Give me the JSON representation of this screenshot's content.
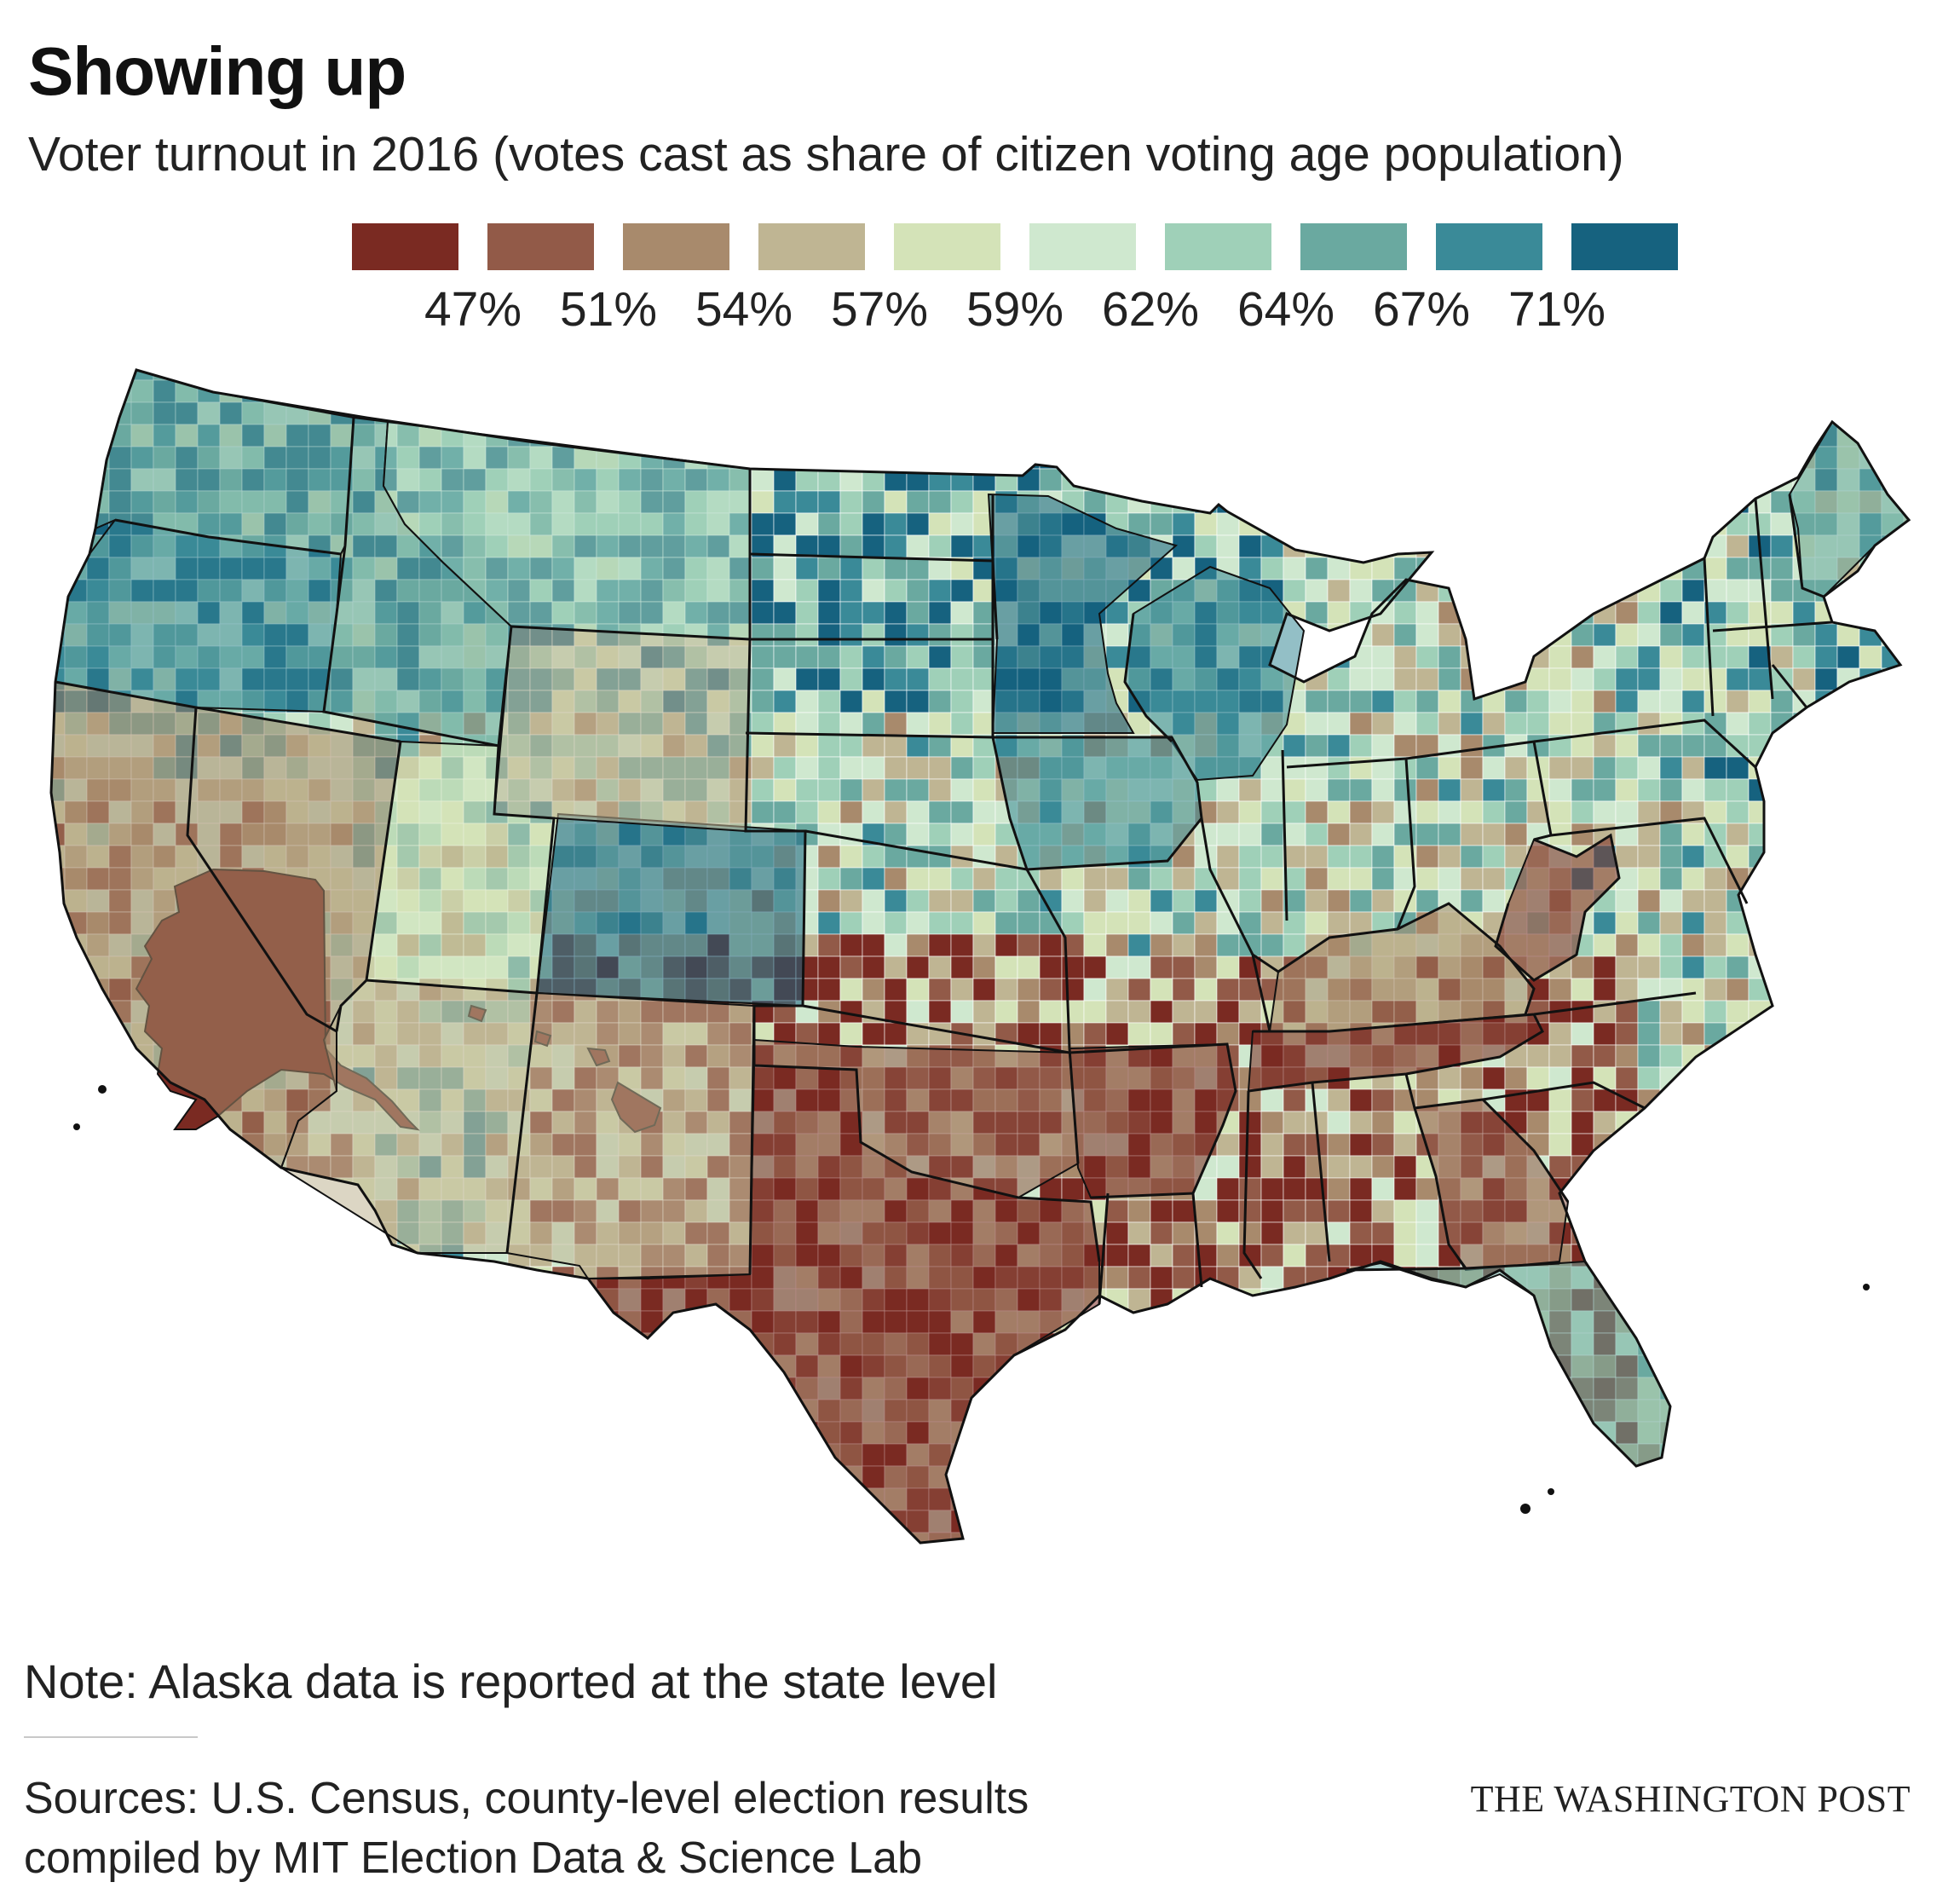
{
  "header": {
    "title": "Showing up",
    "subtitle": "Voter turnout in 2016 (votes cast as share of citizen voting age population)"
  },
  "legend": {
    "colors": [
      "#7a2a22",
      "#925a48",
      "#a88a6c",
      "#bfb593",
      "#d4e3b8",
      "#cfe8cf",
      "#9fd0b8",
      "#6aa9a0",
      "#3a8a98",
      "#16627f"
    ],
    "breaks": [
      "47%",
      "51%",
      "54%",
      "57%",
      "59%",
      "62%",
      "64%",
      "67%",
      "71%"
    ]
  },
  "map": {
    "type": "choropleth",
    "geography": "U.S. counties (Alaska at state level)",
    "measure": "Voter turnout in 2016",
    "stroke_color": "#111111",
    "regions": [
      {
        "name": "Alaska",
        "class": 0
      },
      {
        "name": "Hawaii",
        "class": 0
      },
      {
        "name": "Colorado",
        "class": 9
      },
      {
        "name": "Minnesota",
        "class": 9
      },
      {
        "name": "Wisconsin",
        "class": 8
      },
      {
        "name": "West Virginia",
        "class": 0
      },
      {
        "name": "Tennessee",
        "class": 0
      },
      {
        "name": "Texas",
        "class": 0
      },
      {
        "name": "Oklahoma",
        "class": 1
      },
      {
        "name": "Arkansas",
        "class": 0
      },
      {
        "name": "Georgia",
        "class": 1
      },
      {
        "name": "Maine",
        "class": 7
      },
      {
        "name": "Wyoming",
        "class": 3
      },
      {
        "name": "Utah",
        "class": 4
      },
      {
        "name": "Nevada",
        "class": 2
      },
      {
        "name": "Arizona",
        "class": 3
      },
      {
        "name": "New Mexico",
        "class": 3
      },
      {
        "name": "Idaho",
        "class": 7
      },
      {
        "name": "Montana",
        "class": 6
      },
      {
        "name": "Oregon",
        "class": 8
      },
      {
        "name": "Washington",
        "class": 7
      },
      {
        "name": "California",
        "class": 2
      },
      {
        "name": "Florida",
        "class": 7
      },
      {
        "name": "Iowa",
        "class": 8
      },
      {
        "name": "Kentucky",
        "class": 2
      }
    ]
  },
  "footer": {
    "note": "Note: Alaska data is reported at the state level",
    "sources_line1": "Sources: U.S. Census, county-level election results",
    "sources_line2": "compiled by MIT Election Data & Science Lab",
    "credit": "THE WASHINGTON POST"
  }
}
